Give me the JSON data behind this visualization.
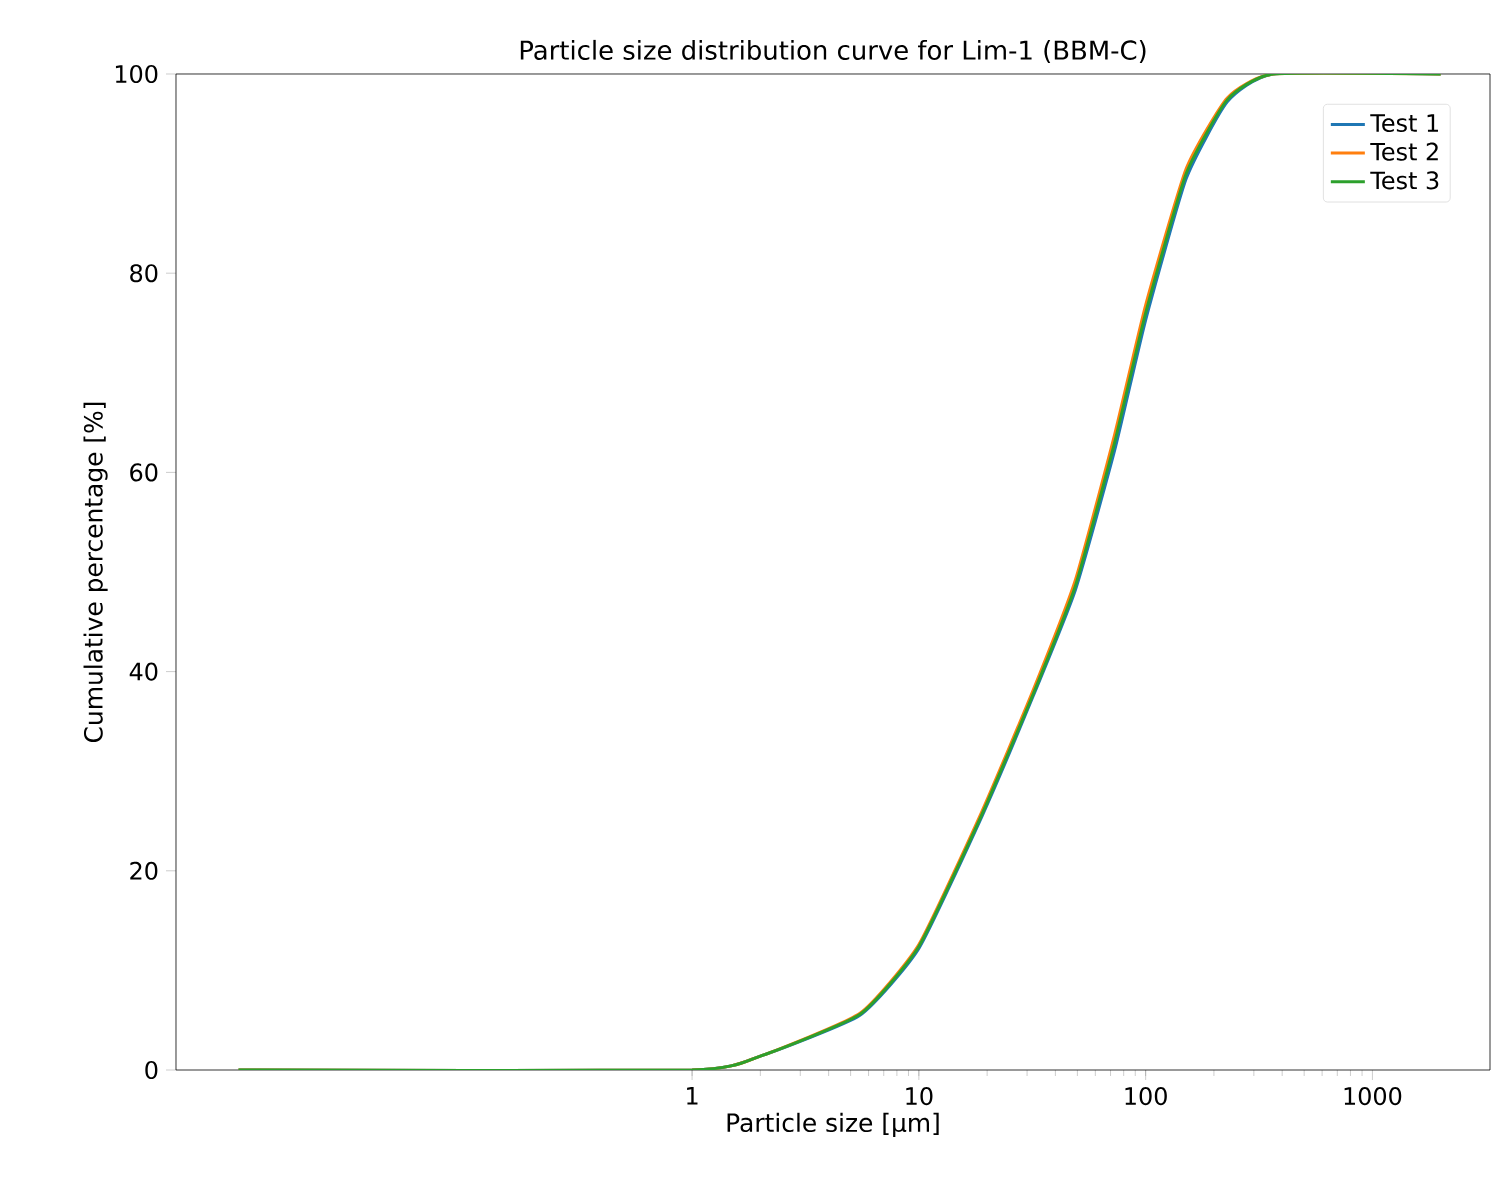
{
  "chart_data": {
    "type": "line",
    "title": "Particle size distribution curve for Lim-1 (BBM-C)",
    "xlabel": "Particle size [µm]",
    "ylabel": "Cumulative percentage [%]",
    "log": "x",
    "xlim": [
      0.0053,
      3300
    ],
    "ylim": [
      0,
      100
    ],
    "xticks": [
      1,
      10,
      100,
      1000
    ],
    "yticks": [
      0,
      20,
      40,
      60,
      80,
      100
    ],
    "legend": "top right",
    "series": [
      {
        "name": "Test 1",
        "color": "#1f77b4",
        "x": [
          0.01,
          1,
          2,
          5.5,
          10,
          19,
          32,
          49,
          73,
          100,
          151,
          229,
          365,
          2000
        ],
        "values": [
          0,
          0,
          1.4,
          5.5,
          12.2,
          25.5,
          37.6,
          48.2,
          62.2,
          75.3,
          89.5,
          97.2,
          100,
          100
        ]
      },
      {
        "name": "Test 2",
        "color": "#ff7f0e",
        "x": [
          0.01,
          1,
          2,
          5.5,
          10,
          19,
          32,
          49,
          73,
          100,
          151,
          229,
          365,
          2000
        ],
        "values": [
          0,
          0,
          1.4,
          5.7,
          12.6,
          26,
          38.2,
          49.2,
          63.8,
          76.8,
          90.5,
          97.6,
          100,
          100
        ]
      },
      {
        "name": "Test 3",
        "color": "#2ca02c",
        "x": [
          0.01,
          1,
          2,
          5.5,
          10,
          19,
          32,
          49,
          73,
          100,
          151,
          229,
          365,
          2000
        ],
        "values": [
          0,
          0,
          1.4,
          5.6,
          12.4,
          25.7,
          37.8,
          48.6,
          63,
          76,
          90,
          97.4,
          100,
          100
        ]
      }
    ]
  }
}
